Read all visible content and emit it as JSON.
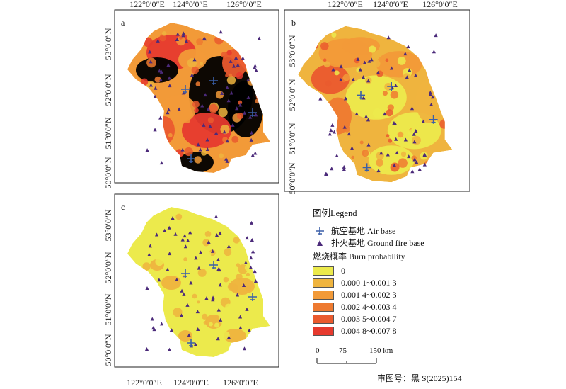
{
  "axes": {
    "top_lon_labels": [
      "122°0′0″E",
      "124°0′0″E",
      "126°0′0″E"
    ],
    "bottom_lon_labels": [
      "122°0′0″E",
      "124°0′0″E",
      "126°0′0″E"
    ],
    "lat_labels": [
      "53°0′0″N",
      "52°0′0″N",
      "51°0′0″N",
      "50°0′0″N"
    ]
  },
  "panels": [
    {
      "letter": "a",
      "theme": "high"
    },
    {
      "letter": "b",
      "theme": "mid"
    },
    {
      "letter": "c",
      "theme": "low"
    }
  ],
  "legend": {
    "title": "图例Legend",
    "air_base": "航空基地 Air base",
    "ground_base": "扑火基地 Ground fire base",
    "burn_title": "燃烧概率 Burn probability",
    "classes": [
      {
        "label": "0",
        "color": "#ecea4c"
      },
      {
        "label": "0.000 1~0.001 3",
        "color": "#efb43e"
      },
      {
        "label": "0.001 4~0.002 3",
        "color": "#f29a38"
      },
      {
        "label": "0.002 4~0.003 4",
        "color": "#ee7a30"
      },
      {
        "label": "0.003 5~0.004 7",
        "color": "#ea5a2e"
      },
      {
        "label": "0.004 8~0.007 8",
        "color": "#e63a2e"
      }
    ]
  },
  "scale_bar": {
    "labels": [
      "0",
      "75",
      "150 km"
    ]
  },
  "approval_number": "审图号：黑 S(2025)154",
  "colors": {
    "air_base": "#3a5fa8",
    "ground_base": "#4b2a7a",
    "frame": "#222222"
  }
}
